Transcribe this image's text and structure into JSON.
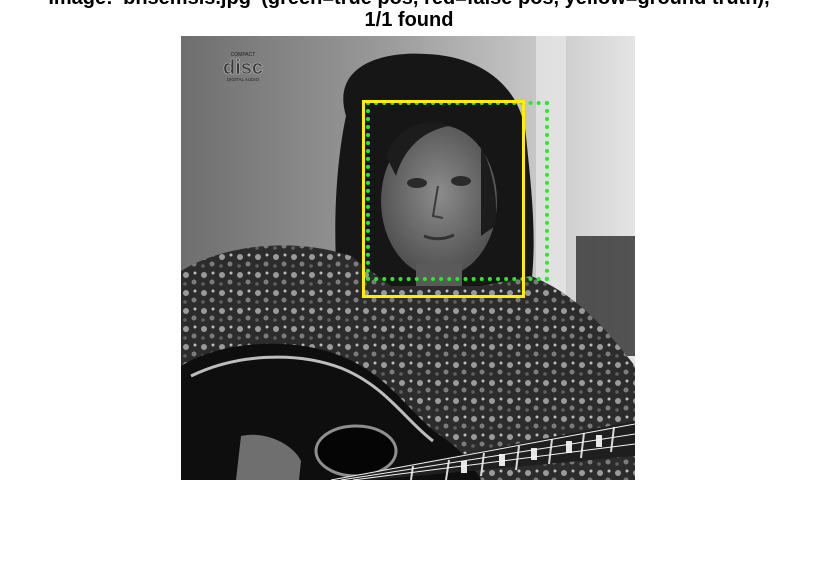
{
  "figure": {
    "title_line_1": "Image: 'bhsemsis.jpg' (green=true pos, red=false pos, yellow=ground truth),",
    "title_line_2": "1/1 found"
  },
  "photo": {
    "subject": "black-and-white portrait of a long-haired person holding an acoustic guitar",
    "logo_text": "disc",
    "logo_small_top": "COMPACT",
    "logo_small_bottom": "DIGITAL AUDIO"
  },
  "boxes": {
    "true_positive_color": "#22ee22",
    "ground_truth_color": "#ffee00"
  }
}
